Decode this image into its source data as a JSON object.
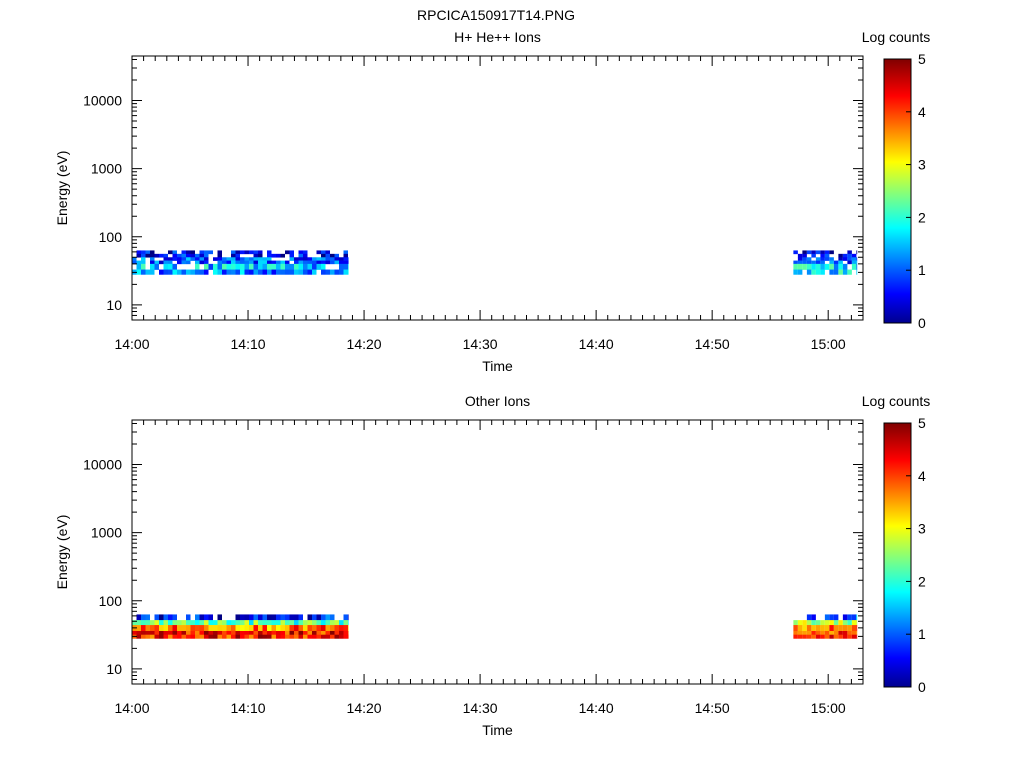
{
  "figure": {
    "title": "RPCICA150917T14.PNG"
  },
  "chart_data": [
    {
      "type": "heatmap",
      "title": "H+ He++ Ions",
      "xlabel": "Time",
      "ylabel": "Energy (eV)",
      "x_ticks": [
        "14:00",
        "14:10",
        "14:20",
        "14:30",
        "14:40",
        "14:50",
        "15:00"
      ],
      "x_range": [
        "14:00",
        "15:03"
      ],
      "y_scale": "log",
      "y_ticks": [
        10,
        100,
        1000,
        10000
      ],
      "y_range": [
        6,
        45000
      ],
      "colorbar": {
        "label": "Log counts",
        "ticks": [
          0,
          1,
          2,
          3,
          4,
          5
        ],
        "range": [
          0,
          5
        ],
        "colormap": "jet"
      },
      "data_blocks": [
        {
          "t_start": "14:00",
          "t_end": "14:18:40",
          "e_min": 28,
          "e_max": 63,
          "bands": [
            {
              "e_min": 50,
              "e_max": 63,
              "log_counts": 0.6
            },
            {
              "e_min": 40,
              "e_max": 50,
              "log_counts": 1.0
            },
            {
              "e_min": 33,
              "e_max": 40,
              "log_counts": 1.6
            },
            {
              "e_min": 28,
              "e_max": 33,
              "log_counts": 1.3
            }
          ]
        },
        {
          "t_start": "14:57:00",
          "t_end": "15:02:30",
          "e_min": 28,
          "e_max": 63,
          "bands": [
            {
              "e_min": 50,
              "e_max": 63,
              "log_counts": 0.6
            },
            {
              "e_min": 40,
              "e_max": 50,
              "log_counts": 1.0
            },
            {
              "e_min": 33,
              "e_max": 40,
              "log_counts": 1.7
            },
            {
              "e_min": 28,
              "e_max": 33,
              "log_counts": 1.8
            }
          ]
        }
      ]
    },
    {
      "type": "heatmap",
      "title": "Other Ions",
      "xlabel": "Time",
      "ylabel": "Energy (eV)",
      "x_ticks": [
        "14:00",
        "14:10",
        "14:20",
        "14:30",
        "14:40",
        "14:50",
        "15:00"
      ],
      "x_range": [
        "14:00",
        "15:03"
      ],
      "y_scale": "log",
      "y_ticks": [
        10,
        100,
        1000,
        10000
      ],
      "y_range": [
        6,
        45000
      ],
      "colorbar": {
        "label": "Log counts",
        "ticks": [
          0,
          1,
          2,
          3,
          4,
          5
        ],
        "range": [
          0,
          5
        ],
        "colormap": "jet"
      },
      "data_blocks": [
        {
          "t_start": "14:00",
          "t_end": "14:18:40",
          "e_min": 28,
          "e_max": 63,
          "bands": [
            {
              "e_min": 52,
              "e_max": 63,
              "log_counts": 0.7
            },
            {
              "e_min": 44,
              "e_max": 52,
              "log_counts": 2.3
            },
            {
              "e_min": 36,
              "e_max": 44,
              "log_counts": 3.8
            },
            {
              "e_min": 28,
              "e_max": 36,
              "log_counts": 4.3
            }
          ]
        },
        {
          "t_start": "14:57:00",
          "t_end": "15:02:30",
          "e_min": 28,
          "e_max": 63,
          "bands": [
            {
              "e_min": 52,
              "e_max": 63,
              "log_counts": 1.2
            },
            {
              "e_min": 44,
              "e_max": 52,
              "log_counts": 2.8
            },
            {
              "e_min": 36,
              "e_max": 44,
              "log_counts": 3.7
            },
            {
              "e_min": 28,
              "e_max": 36,
              "log_counts": 4.2
            }
          ]
        }
      ]
    }
  ]
}
